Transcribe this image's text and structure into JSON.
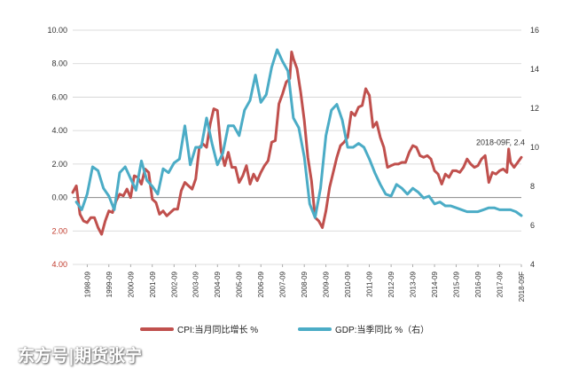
{
  "chart_data": {
    "type": "line",
    "title": "",
    "x_tick_labels": [
      "1998-09",
      "1999-09",
      "2000-09",
      "2001-09",
      "2002-09",
      "2003-09",
      "2004-09",
      "2005-09",
      "2006-09",
      "2007-09",
      "2008-09",
      "2009-09",
      "2010-09",
      "2011-09",
      "2012-09",
      "2013-09",
      "2014-09",
      "2015-09",
      "2016-09",
      "2017-09",
      "2018-09F"
    ],
    "x_range": [
      "1998-01",
      "2018-09"
    ],
    "y_left": {
      "range": [
        -4,
        10
      ],
      "ticks": [
        -4,
        -2,
        0,
        2,
        4,
        6,
        8,
        10
      ],
      "tick_labels": [
        "4.00",
        "2.00",
        "0.00",
        "2.00",
        "4.00",
        "6.00",
        "8.00",
        "10.00"
      ]
    },
    "y_right": {
      "range": [
        4,
        16
      ],
      "ticks": [
        4,
        6,
        8,
        10,
        12,
        14,
        16
      ],
      "tick_labels": [
        "4",
        "6",
        "8",
        "10",
        "12",
        "14",
        "16"
      ]
    },
    "grid": "horizontal",
    "legend_position": "bottom",
    "series": [
      {
        "name": "CPI:当月同比增长 %",
        "axis": "left",
        "color": "#c0504d",
        "points": [
          [
            "1998-01",
            0.3
          ],
          [
            "1998-03",
            0.7
          ],
          [
            "1998-05",
            -1.0
          ],
          [
            "1998-07",
            -1.4
          ],
          [
            "1998-09",
            -1.5
          ],
          [
            "1998-11",
            -1.2
          ],
          [
            "1999-01",
            -1.2
          ],
          [
            "1999-03",
            -1.8
          ],
          [
            "1999-05",
            -2.2
          ],
          [
            "1999-07",
            -1.4
          ],
          [
            "1999-09",
            -0.8
          ],
          [
            "1999-11",
            -0.9
          ],
          [
            "2000-01",
            -0.2
          ],
          [
            "2000-03",
            0.2
          ],
          [
            "2000-05",
            0.1
          ],
          [
            "2000-07",
            0.5
          ],
          [
            "2000-09",
            0.0
          ],
          [
            "2000-11",
            1.3
          ],
          [
            "2001-01",
            1.2
          ],
          [
            "2001-03",
            0.8
          ],
          [
            "2001-05",
            1.7
          ],
          [
            "2001-07",
            1.5
          ],
          [
            "2001-09",
            -0.1
          ],
          [
            "2001-11",
            -0.3
          ],
          [
            "2002-01",
            -1.0
          ],
          [
            "2002-03",
            -0.8
          ],
          [
            "2002-05",
            -1.1
          ],
          [
            "2002-07",
            -0.9
          ],
          [
            "2002-09",
            -0.7
          ],
          [
            "2002-11",
            -0.7
          ],
          [
            "2003-01",
            0.4
          ],
          [
            "2003-03",
            0.9
          ],
          [
            "2003-05",
            0.7
          ],
          [
            "2003-07",
            0.5
          ],
          [
            "2003-09",
            1.1
          ],
          [
            "2003-11",
            3.0
          ],
          [
            "2004-01",
            3.2
          ],
          [
            "2004-03",
            3.0
          ],
          [
            "2004-05",
            4.4
          ],
          [
            "2004-07",
            5.3
          ],
          [
            "2004-09",
            5.2
          ],
          [
            "2004-11",
            2.8
          ],
          [
            "2005-01",
            1.9
          ],
          [
            "2005-03",
            2.7
          ],
          [
            "2005-05",
            1.8
          ],
          [
            "2005-07",
            1.8
          ],
          [
            "2005-09",
            0.9
          ],
          [
            "2005-11",
            1.3
          ],
          [
            "2006-01",
            1.9
          ],
          [
            "2006-03",
            0.8
          ],
          [
            "2006-05",
            1.4
          ],
          [
            "2006-07",
            1.0
          ],
          [
            "2006-09",
            1.5
          ],
          [
            "2006-11",
            1.9
          ],
          [
            "2007-01",
            2.2
          ],
          [
            "2007-03",
            3.3
          ],
          [
            "2007-05",
            3.4
          ],
          [
            "2007-07",
            5.6
          ],
          [
            "2007-09",
            6.2
          ],
          [
            "2007-11",
            6.9
          ],
          [
            "2008-01",
            7.1
          ],
          [
            "2008-02",
            8.7
          ],
          [
            "2008-03",
            8.3
          ],
          [
            "2008-05",
            7.7
          ],
          [
            "2008-07",
            6.3
          ],
          [
            "2008-09",
            4.6
          ],
          [
            "2008-11",
            2.4
          ],
          [
            "2009-01",
            1.0
          ],
          [
            "2009-03",
            -1.2
          ],
          [
            "2009-05",
            -1.4
          ],
          [
            "2009-07",
            -1.8
          ],
          [
            "2009-09",
            -0.8
          ],
          [
            "2009-11",
            0.6
          ],
          [
            "2010-01",
            1.5
          ],
          [
            "2010-03",
            2.4
          ],
          [
            "2010-05",
            3.1
          ],
          [
            "2010-07",
            3.3
          ],
          [
            "2010-09",
            3.6
          ],
          [
            "2010-11",
            5.1
          ],
          [
            "2011-01",
            4.9
          ],
          [
            "2011-03",
            5.4
          ],
          [
            "2011-05",
            5.5
          ],
          [
            "2011-07",
            6.5
          ],
          [
            "2011-09",
            6.1
          ],
          [
            "2011-11",
            4.2
          ],
          [
            "2012-01",
            4.5
          ],
          [
            "2012-03",
            3.6
          ],
          [
            "2012-05",
            3.0
          ],
          [
            "2012-07",
            1.8
          ],
          [
            "2012-09",
            1.9
          ],
          [
            "2012-11",
            2.0
          ],
          [
            "2013-01",
            2.0
          ],
          [
            "2013-03",
            2.1
          ],
          [
            "2013-05",
            2.1
          ],
          [
            "2013-07",
            2.7
          ],
          [
            "2013-09",
            3.1
          ],
          [
            "2013-11",
            3.0
          ],
          [
            "2014-01",
            2.5
          ],
          [
            "2014-03",
            2.4
          ],
          [
            "2014-05",
            2.5
          ],
          [
            "2014-07",
            2.3
          ],
          [
            "2014-09",
            1.6
          ],
          [
            "2014-11",
            1.4
          ],
          [
            "2015-01",
            0.8
          ],
          [
            "2015-03",
            1.4
          ],
          [
            "2015-05",
            1.2
          ],
          [
            "2015-07",
            1.6
          ],
          [
            "2015-09",
            1.6
          ],
          [
            "2015-11",
            1.5
          ],
          [
            "2016-01",
            1.8
          ],
          [
            "2016-03",
            2.3
          ],
          [
            "2016-05",
            2.0
          ],
          [
            "2016-07",
            1.8
          ],
          [
            "2016-09",
            1.9
          ],
          [
            "2016-11",
            2.3
          ],
          [
            "2017-01",
            2.5
          ],
          [
            "2017-03",
            0.9
          ],
          [
            "2017-05",
            1.5
          ],
          [
            "2017-07",
            1.4
          ],
          [
            "2017-09",
            1.6
          ],
          [
            "2017-11",
            1.7
          ],
          [
            "2018-01",
            1.5
          ],
          [
            "2018-02",
            2.9
          ],
          [
            "2018-03",
            2.1
          ],
          [
            "2018-05",
            1.8
          ],
          [
            "2018-07",
            2.1
          ],
          [
            "2018-09",
            2.4
          ]
        ]
      },
      {
        "name": "GDP:当季同比 %（右）",
        "axis": "right",
        "color": "#4bacc6",
        "points": [
          [
            "1998-03",
            7.2
          ],
          [
            "1998-06",
            6.8
          ],
          [
            "1998-09",
            7.6
          ],
          [
            "1998-12",
            9.0
          ],
          [
            "1999-03",
            8.8
          ],
          [
            "1999-06",
            7.9
          ],
          [
            "1999-09",
            7.5
          ],
          [
            "1999-12",
            6.8
          ],
          [
            "2000-03",
            8.7
          ],
          [
            "2000-06",
            9.0
          ],
          [
            "2000-09",
            8.4
          ],
          [
            "2000-12",
            7.8
          ],
          [
            "2001-03",
            9.3
          ],
          [
            "2001-06",
            8.3
          ],
          [
            "2001-09",
            8.0
          ],
          [
            "2001-12",
            7.6
          ],
          [
            "2002-03",
            8.9
          ],
          [
            "2002-06",
            8.7
          ],
          [
            "2002-09",
            9.2
          ],
          [
            "2002-12",
            9.4
          ],
          [
            "2003-03",
            11.1
          ],
          [
            "2003-06",
            9.1
          ],
          [
            "2003-09",
            10.0
          ],
          [
            "2003-12",
            10.0
          ],
          [
            "2004-03",
            11.5
          ],
          [
            "2004-06",
            10.2
          ],
          [
            "2004-09",
            9.1
          ],
          [
            "2004-12",
            9.7
          ],
          [
            "2005-03",
            11.1
          ],
          [
            "2005-06",
            11.1
          ],
          [
            "2005-09",
            10.6
          ],
          [
            "2005-12",
            11.9
          ],
          [
            "2006-03",
            12.4
          ],
          [
            "2006-06",
            13.7
          ],
          [
            "2006-09",
            12.3
          ],
          [
            "2006-12",
            12.7
          ],
          [
            "2007-03",
            14.1
          ],
          [
            "2007-06",
            15.0
          ],
          [
            "2007-09",
            14.4
          ],
          [
            "2007-12",
            13.9
          ],
          [
            "2008-03",
            11.5
          ],
          [
            "2008-06",
            11.0
          ],
          [
            "2008-09",
            9.5
          ],
          [
            "2008-12",
            7.1
          ],
          [
            "2009-03",
            6.4
          ],
          [
            "2009-06",
            7.9
          ],
          [
            "2009-09",
            10.6
          ],
          [
            "2009-12",
            11.9
          ],
          [
            "2010-03",
            12.2
          ],
          [
            "2010-06",
            11.4
          ],
          [
            "2010-09",
            10.0
          ],
          [
            "2010-12",
            10.0
          ],
          [
            "2011-03",
            10.2
          ],
          [
            "2011-06",
            10.0
          ],
          [
            "2011-09",
            9.4
          ],
          [
            "2011-12",
            8.7
          ],
          [
            "2012-03",
            8.1
          ],
          [
            "2012-06",
            7.6
          ],
          [
            "2012-09",
            7.5
          ],
          [
            "2012-12",
            8.1
          ],
          [
            "2013-03",
            7.9
          ],
          [
            "2013-06",
            7.6
          ],
          [
            "2013-09",
            7.9
          ],
          [
            "2013-12",
            7.7
          ],
          [
            "2014-03",
            7.4
          ],
          [
            "2014-06",
            7.5
          ],
          [
            "2014-09",
            7.1
          ],
          [
            "2014-12",
            7.2
          ],
          [
            "2015-03",
            7.0
          ],
          [
            "2015-06",
            7.0
          ],
          [
            "2015-09",
            6.9
          ],
          [
            "2015-12",
            6.8
          ],
          [
            "2016-03",
            6.7
          ],
          [
            "2016-06",
            6.7
          ],
          [
            "2016-09",
            6.7
          ],
          [
            "2016-12",
            6.8
          ],
          [
            "2017-03",
            6.9
          ],
          [
            "2017-06",
            6.9
          ],
          [
            "2017-09",
            6.8
          ],
          [
            "2017-12",
            6.8
          ],
          [
            "2018-03",
            6.8
          ],
          [
            "2018-06",
            6.7
          ],
          [
            "2018-09",
            6.5
          ]
        ]
      }
    ],
    "annotations": [
      {
        "text": "2018-09F, 2.4",
        "x": "2018-09",
        "y": 2.4,
        "axis": "left"
      }
    ]
  },
  "watermark": "东方号|期货张宁"
}
